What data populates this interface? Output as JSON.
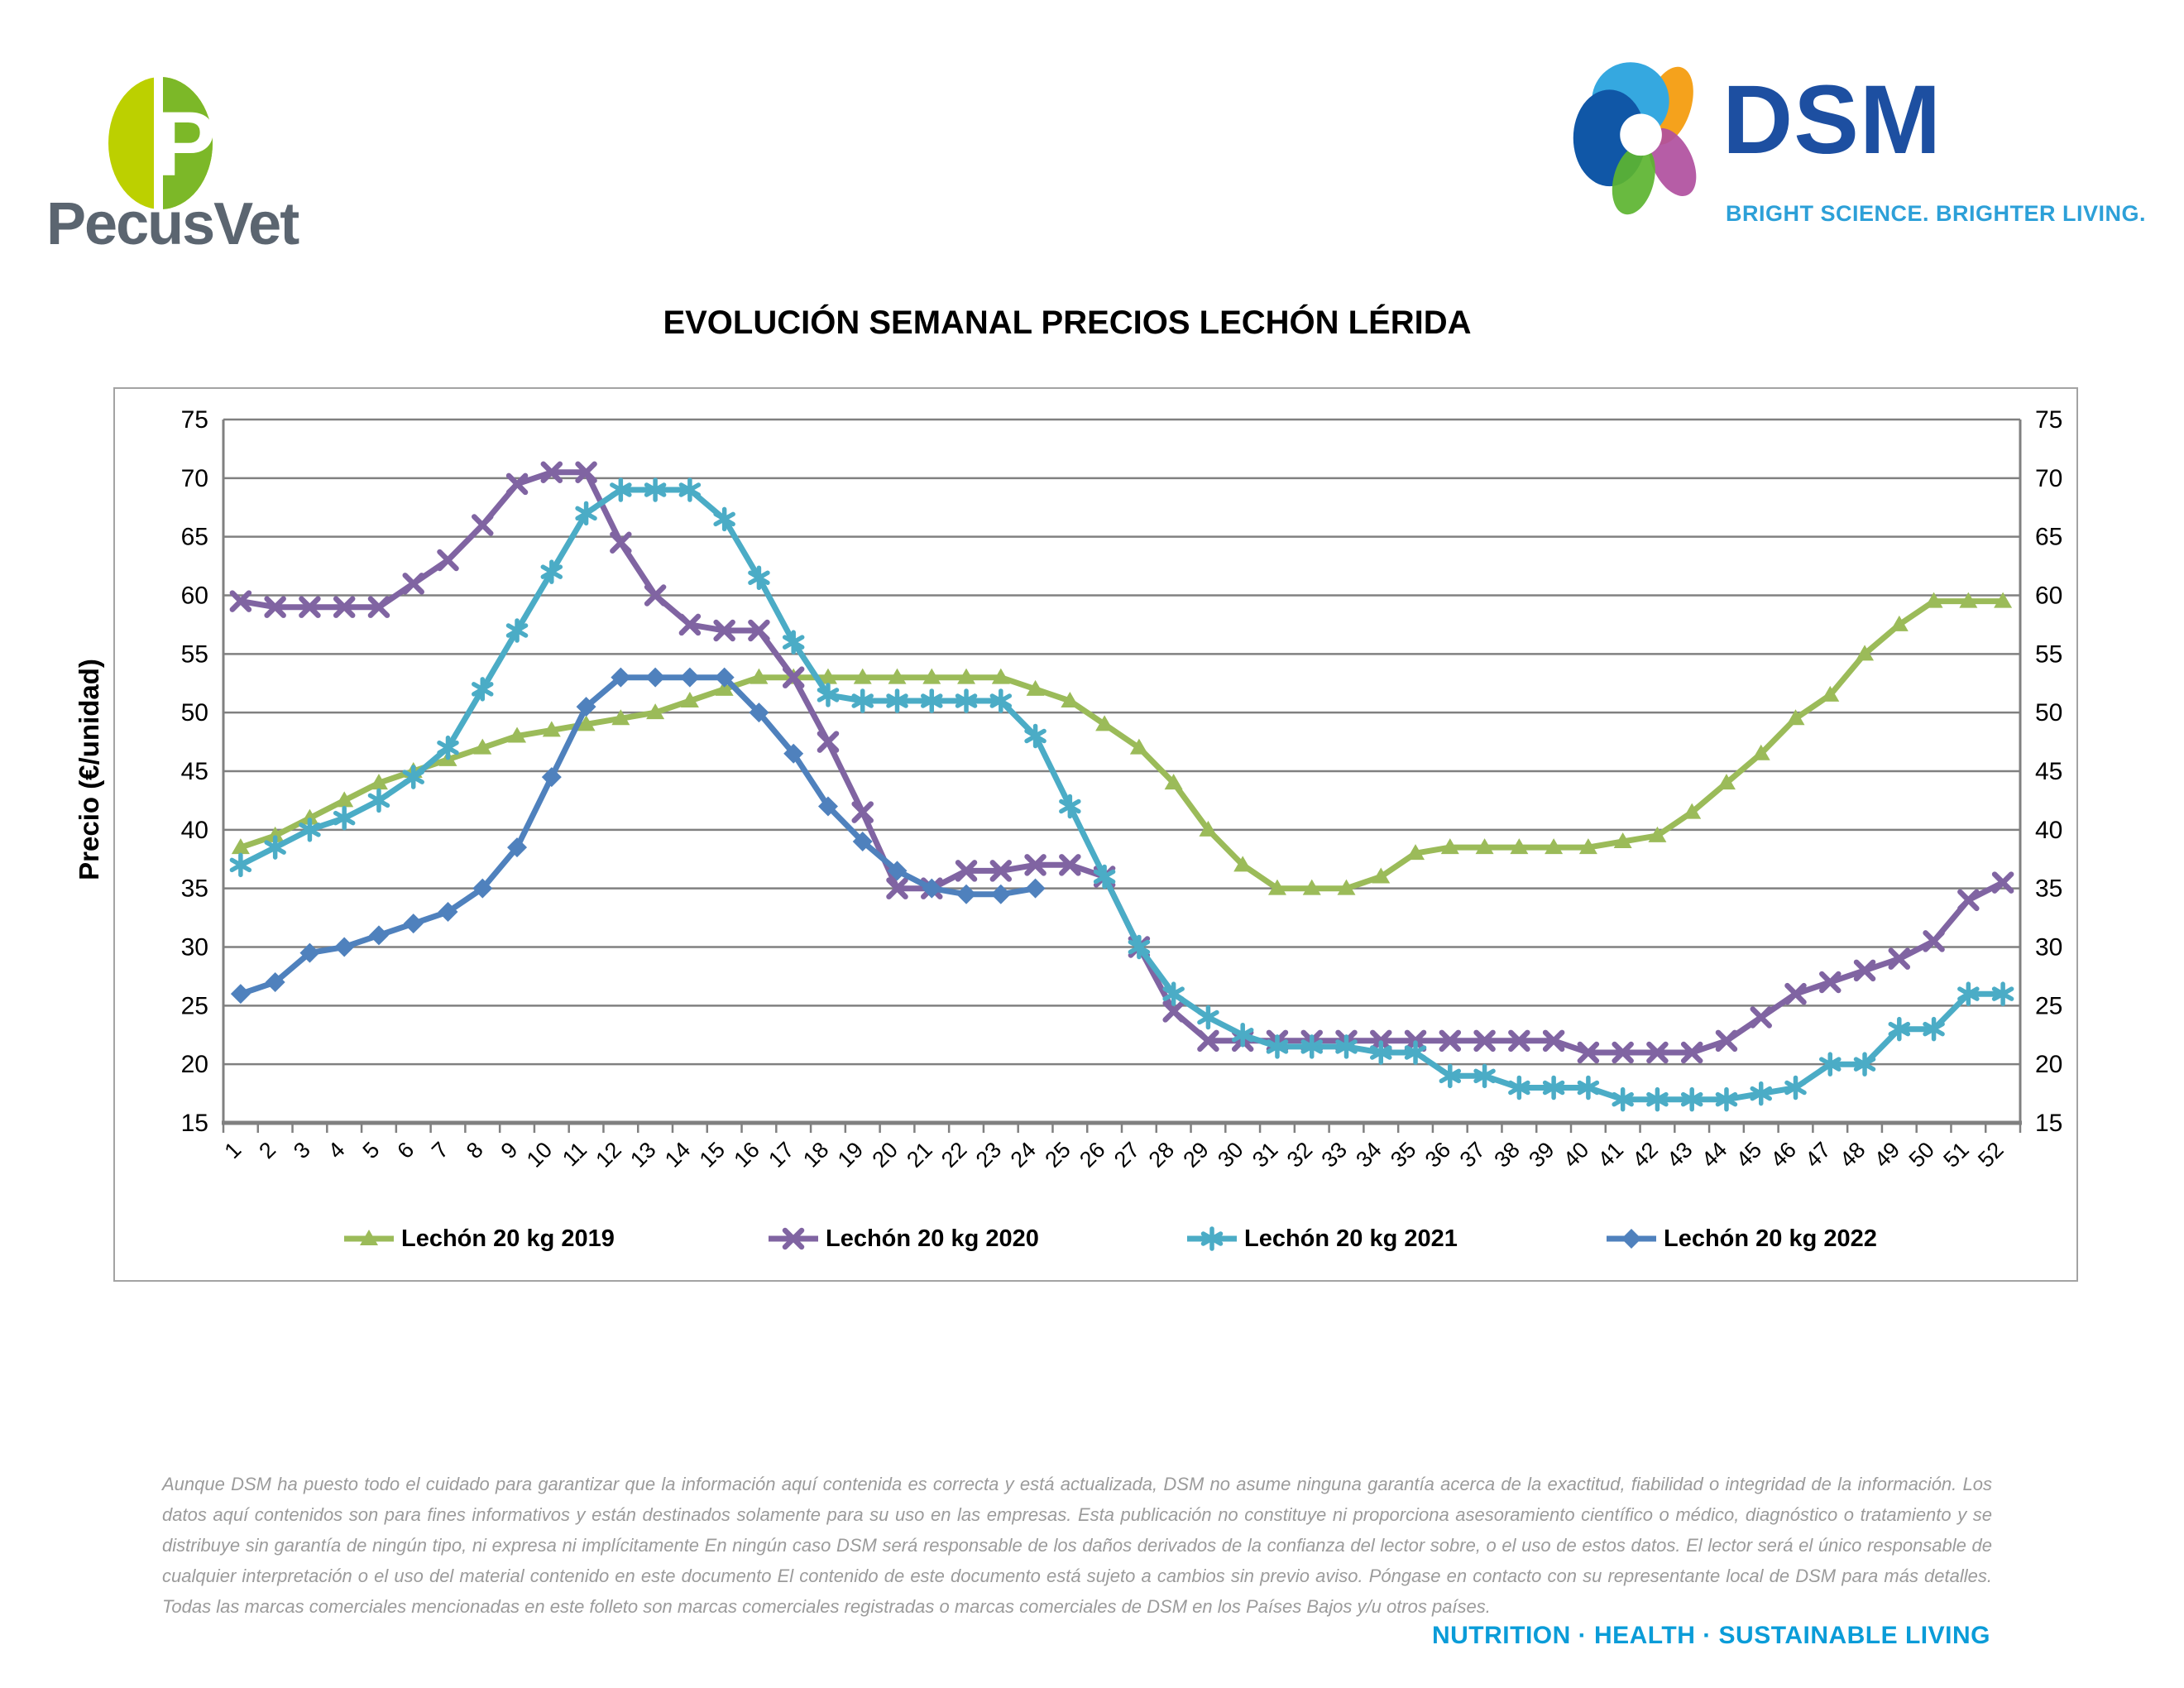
{
  "header": {
    "pecusvet_text": "PecusVet",
    "dsm_text": "DSM",
    "dsm_tagline": "BRIGHT SCIENCE. BRIGHTER LIVING."
  },
  "title": "EVOLUCIÓN SEMANAL PRECIOS LECHÓN LÉRIDA",
  "chart_data": {
    "type": "line",
    "title": "EVOLUCIÓN SEMANAL PRECIOS LECHÓN LÉRIDA",
    "xlabel": "",
    "ylabel": "Precio (€/unidad)",
    "ylim": [
      15,
      75
    ],
    "ytick_step": 5,
    "yticks": [
      15,
      20,
      25,
      30,
      35,
      40,
      45,
      50,
      55,
      60,
      65,
      70,
      75
    ],
    "grid": true,
    "legend_position": "bottom",
    "axis_color": "#808080",
    "categories": [
      1,
      2,
      3,
      4,
      5,
      6,
      7,
      8,
      9,
      10,
      11,
      12,
      13,
      14,
      15,
      16,
      17,
      18,
      19,
      20,
      21,
      22,
      23,
      24,
      25,
      26,
      27,
      28,
      29,
      30,
      31,
      32,
      33,
      34,
      35,
      36,
      37,
      38,
      39,
      40,
      41,
      42,
      43,
      44,
      45,
      46,
      47,
      48,
      49,
      50,
      51,
      52
    ],
    "series": [
      {
        "name": "Lechón 20 kg 2019",
        "color": "#9BBB59",
        "marker": "triangle",
        "values": [
          38.5,
          39.5,
          41,
          42.5,
          44,
          45,
          46,
          47,
          48,
          48.5,
          49,
          49.5,
          50,
          51,
          52,
          53,
          53,
          53,
          53,
          53,
          53,
          53,
          53,
          52,
          51,
          49,
          47,
          44,
          40,
          37,
          35,
          35,
          35,
          36,
          38,
          38.5,
          38.5,
          38.5,
          38.5,
          38.5,
          39,
          39.5,
          41.5,
          44,
          46.5,
          49.5,
          51.5,
          55,
          57.5,
          59.5,
          59.5,
          59.5
        ]
      },
      {
        "name": "Lechón 20 kg 2020",
        "color": "#8064A2",
        "marker": "x",
        "values": [
          59.5,
          59,
          59,
          59,
          59,
          61,
          63,
          66,
          69.5,
          70.5,
          70.5,
          64.5,
          60,
          57.5,
          57,
          57,
          53,
          47.5,
          41.5,
          35,
          35,
          36.5,
          36.5,
          37,
          37,
          36,
          30,
          24.5,
          22,
          22,
          22,
          22,
          22,
          22,
          22,
          22,
          22,
          22,
          22,
          21,
          21,
          21,
          21,
          22,
          24,
          26,
          27,
          28,
          29,
          30.5,
          34,
          35.5
        ]
      },
      {
        "name": "Lechón 20 kg 2021",
        "color": "#4BACC6",
        "marker": "star",
        "values": [
          37,
          38.5,
          40,
          41,
          42.5,
          44.5,
          47,
          52,
          57,
          62,
          67,
          69,
          69,
          69,
          66.5,
          61.5,
          56,
          51.5,
          51,
          51,
          51,
          51,
          51,
          48,
          42,
          36,
          30,
          26,
          24,
          22.5,
          21.5,
          21.5,
          21.5,
          21,
          21,
          19,
          19,
          18,
          18,
          18,
          17,
          17,
          17,
          17,
          17.5,
          18,
          20,
          20,
          23,
          23,
          26,
          26
        ]
      },
      {
        "name": "Lechón 20 kg 2022",
        "color": "#4F81BD",
        "marker": "diamond",
        "values": [
          26,
          27,
          29.5,
          30,
          31,
          32,
          33,
          35,
          38.5,
          44.5,
          50.5,
          53,
          53,
          53,
          53,
          50,
          46.5,
          42,
          39,
          36.5,
          35,
          34.5,
          34.5,
          35,
          null,
          null,
          null,
          null,
          null,
          null,
          null,
          null,
          null,
          null,
          null,
          null,
          null,
          null,
          null,
          null,
          null,
          null,
          null,
          null,
          null,
          null,
          null,
          null,
          null,
          null,
          null,
          null
        ]
      }
    ]
  },
  "footer": {
    "disclaimer": "Aunque DSM ha puesto todo el cuidado para garantizar que la información aquí contenida es correcta y está actualizada, DSM no asume ninguna garantía acerca de la exactitud, fiabilidad o integridad de la información. Los datos aquí contenidos son para fines informativos y están destinados solamente para su uso en las empresas. Esta publicación no constituye ni proporciona asesoramiento científico o médico, diagnóstico o tratamiento y se distribuye sin garantía de ningún tipo, ni expresa ni implícitamente En ningún caso DSM será responsable de los daños derivados de la confianza del lector sobre, o el uso de estos datos. El lector será el único responsable de cualquier interpretación o el uso del material contenido en este documento El contenido de este documento está sujeto a cambios sin previo aviso. Póngase en contacto con su representante local de DSM para más detalles. Todas las marcas comerciales mencionadas en este folleto son marcas comerciales registradas o marcas comerciales de DSM en los Países Bajos y/u otros países.",
    "tagline": "NUTRITION · HEALTH · SUSTAINABLE LIVING"
  }
}
